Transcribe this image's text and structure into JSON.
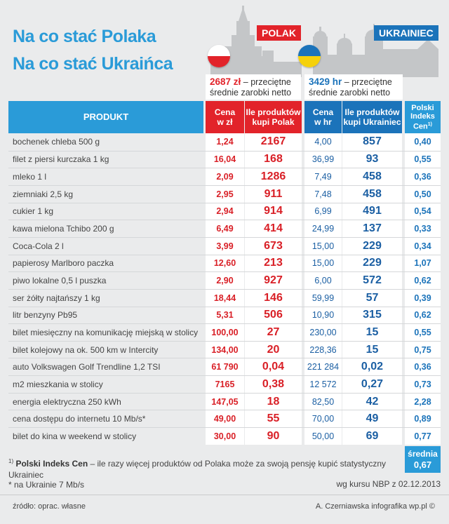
{
  "header": {
    "line1": "Na co stać Polaka",
    "line2": "Na co stać Ukraińca",
    "poland_label": "POLAK",
    "ukraine_label": "UKRAINIEC"
  },
  "salaries": {
    "poland_amount": "2687 zł",
    "poland_desc_1": " – przeciętne",
    "poland_desc_2": "średnie zarobki netto",
    "ukraine_amount": "3429 hr",
    "ukraine_desc_1": " – przeciętne",
    "ukraine_desc_2": "średnie zarobki netto"
  },
  "columns": {
    "product": "PRODUKT",
    "price_pln_1": "Cena",
    "price_pln_2": "w zł",
    "qty_pl_1": "Ile produktów",
    "qty_pl_2": "kupi Polak",
    "price_uah_1": "Cena",
    "price_uah_2": "w hr",
    "qty_ua_1": "Ile produktów",
    "qty_ua_2": "kupi Ukrainiec",
    "index_1": "Polski",
    "index_2": "Indeks",
    "index_3": "Cen",
    "index_sup": "1)"
  },
  "rows": [
    {
      "name": "bochenek chleba 500 g",
      "pln": "1,24",
      "pl_qty": "2167",
      "uah": "4,00",
      "ua_qty": "857",
      "idx": "0,40"
    },
    {
      "name": "filet z piersi kurczaka 1 kg",
      "pln": "16,04",
      "pl_qty": "168",
      "uah": "36,99",
      "ua_qty": "93",
      "idx": "0,55"
    },
    {
      "name": "mleko 1 l",
      "pln": "2,09",
      "pl_qty": "1286",
      "uah": "7,49",
      "ua_qty": "458",
      "idx": "0,36"
    },
    {
      "name": "ziemniaki 2,5 kg",
      "pln": "2,95",
      "pl_qty": "911",
      "uah": "7,48",
      "ua_qty": "458",
      "idx": "0,50"
    },
    {
      "name": "cukier 1 kg",
      "pln": "2,94",
      "pl_qty": "914",
      "uah": "6,99",
      "ua_qty": "491",
      "idx": "0,54"
    },
    {
      "name": "kawa mielona Tchibo 200 g",
      "pln": "6,49",
      "pl_qty": "414",
      "uah": "24,99",
      "ua_qty": "137",
      "idx": "0,33"
    },
    {
      "name": "Coca-Cola 2 l",
      "pln": "3,99",
      "pl_qty": "673",
      "uah": "15,00",
      "ua_qty": "229",
      "idx": "0,34"
    },
    {
      "name": "papierosy Marlboro paczka",
      "pln": "12,60",
      "pl_qty": "213",
      "uah": "15,00",
      "ua_qty": "229",
      "idx": "1,07"
    },
    {
      "name": "piwo lokalne 0,5 l puszka",
      "pln": "2,90",
      "pl_qty": "927",
      "uah": "6,00",
      "ua_qty": "572",
      "idx": "0,62"
    },
    {
      "name": "ser żółty najtańszy 1 kg",
      "pln": "18,44",
      "pl_qty": "146",
      "uah": "59,99",
      "ua_qty": "57",
      "idx": "0,39"
    },
    {
      "name": "litr benzyny Pb95",
      "pln": "5,31",
      "pl_qty": "506",
      "uah": "10,90",
      "ua_qty": "315",
      "idx": "0,62"
    },
    {
      "name": "bilet miesięczny na komunikację miejską  w stolicy",
      "pln": "100,00",
      "pl_qty": "27",
      "uah": "230,00",
      "ua_qty": "15",
      "idx": "0,55"
    },
    {
      "name": "bilet kolejowy na ok. 500 km w Intercity",
      "pln": "134,00",
      "pl_qty": "20",
      "uah": "228,36",
      "ua_qty": "15",
      "idx": "0,75"
    },
    {
      "name": "auto Volkswagen Golf Trendline 1,2 TSI",
      "pln": "61 790",
      "pl_qty": "0,04",
      "uah": "221 284",
      "ua_qty": "0,02",
      "idx": "0,36"
    },
    {
      "name": "m2 mieszkania w stolicy",
      "pln": "7165",
      "pl_qty": "0,38",
      "uah": "12 572",
      "ua_qty": "0,27",
      "idx": "0,73"
    },
    {
      "name": "energia elektryczna 250 kWh",
      "pln": "147,05",
      "pl_qty": "18",
      "uah": "82,50",
      "ua_qty": "42",
      "idx": "2,28"
    },
    {
      "name": "cena dostępu do internetu 10 Mb/s*",
      "pln": "49,00",
      "pl_qty": "55",
      "uah": "70,00",
      "ua_qty": "49",
      "idx": "0,89"
    },
    {
      "name": "bilet do kina w weekend w stolicy",
      "pln": "30,00",
      "pl_qty": "90",
      "uah": "50,00",
      "ua_qty": "69",
      "idx": "0,77"
    }
  ],
  "average": {
    "label": "średnia",
    "value": "0,67"
  },
  "footnotes": {
    "fn1_mark": "1)",
    "fn1_bold": "Polski Indeks Cen",
    "fn1_text": " – ile razy więcej produktów od Polaka może za swoją pensję kupić statystyczny Ukrainiec",
    "fn2": "* na Ukrainie 7 Mb/s",
    "rate": "wg kursu NBP z 02.12.2013"
  },
  "source": "źródło: oprac. własne",
  "credit": "A. Czerniawska infografika wp.pl ©",
  "colors": {
    "pl_red": "#e2232a",
    "ua_blue": "#1b73ba",
    "header_blue": "#2a9bd8"
  },
  "icons": {
    "poland_flag": "poland-flag-icon",
    "ukraine_flag": "ukraine-flag-icon"
  }
}
